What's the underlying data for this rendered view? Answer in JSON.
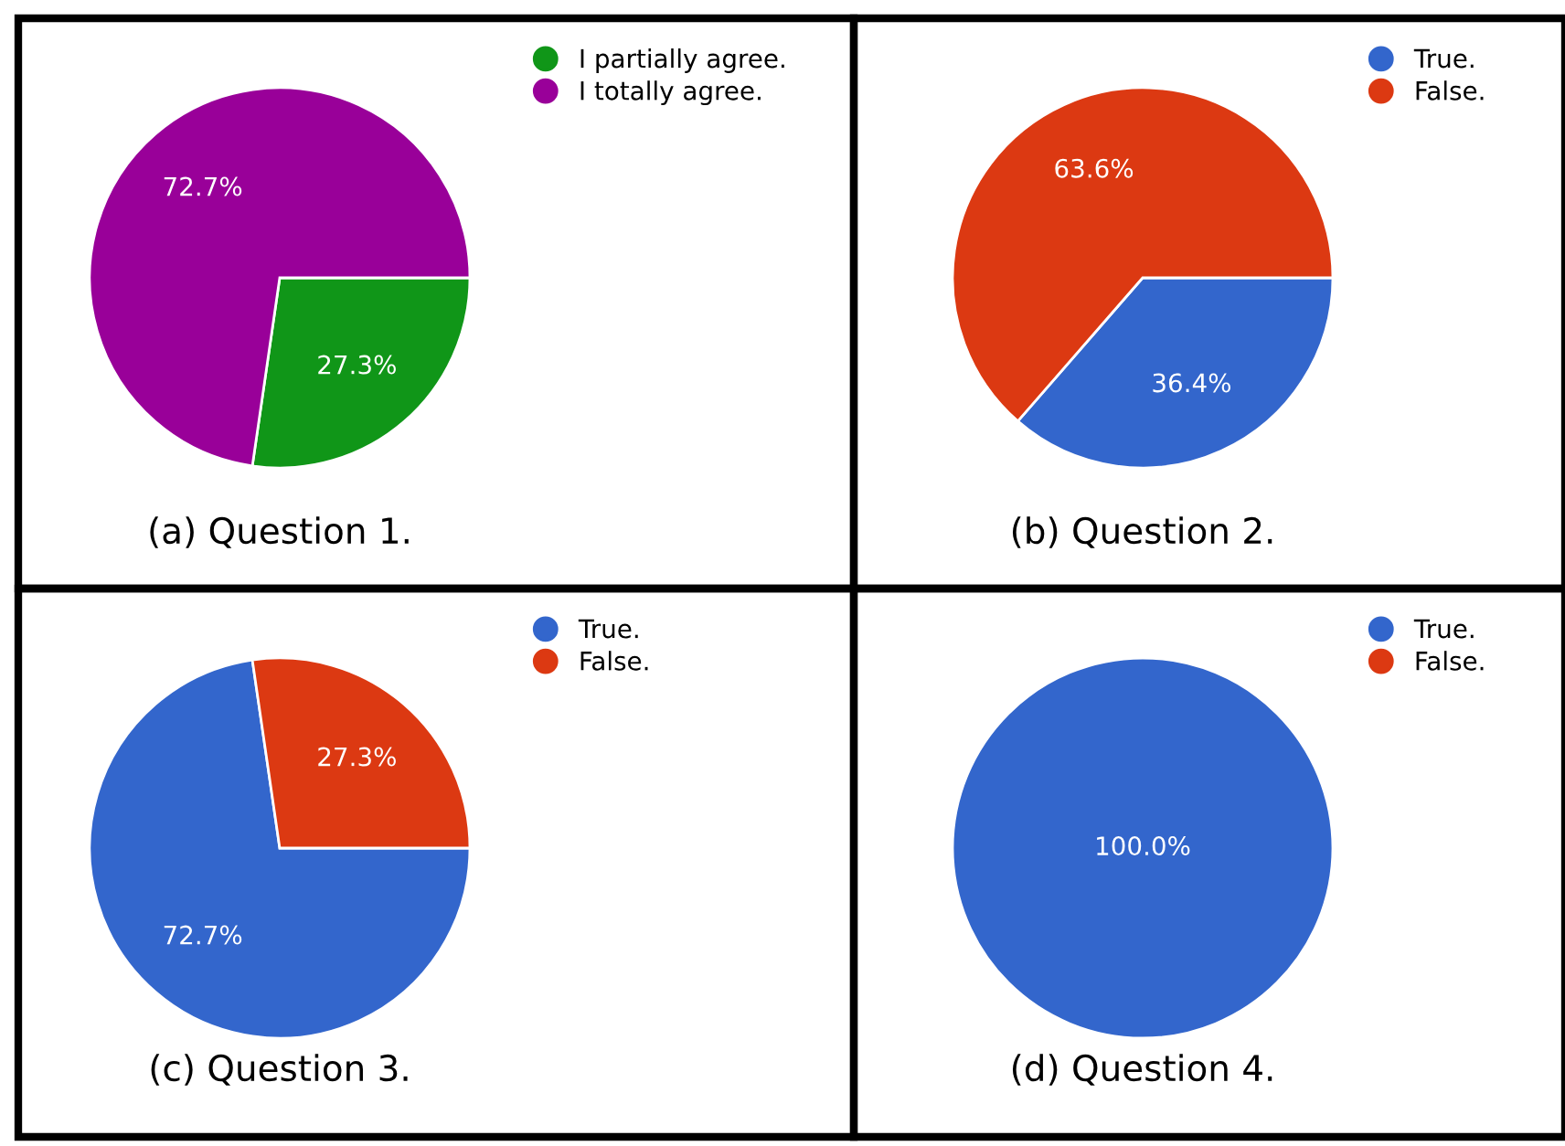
{
  "chart_data": [
    {
      "type": "pie",
      "title": "(a) Question 1.",
      "categories": [
        "I partially agree.",
        "I totally agree."
      ],
      "values": [
        27.3,
        72.7
      ],
      "colors": [
        "#109618",
        "#990099"
      ],
      "value_labels": [
        "27.3%",
        "72.7%"
      ],
      "legend": "top right"
    },
    {
      "type": "pie",
      "title": "(b) Question 2.",
      "categories": [
        "True.",
        "False."
      ],
      "values": [
        36.4,
        63.6
      ],
      "colors": [
        "#3366cc",
        "#dc3912"
      ],
      "value_labels": [
        "36.4%",
        "63.6%"
      ],
      "legend": "top right"
    },
    {
      "type": "pie",
      "title": "(c) Question 3.",
      "categories": [
        "True.",
        "False."
      ],
      "values": [
        72.7,
        27.3
      ],
      "colors": [
        "#3366cc",
        "#dc3912"
      ],
      "value_labels": [
        "72.7%",
        "27.3%"
      ],
      "legend": "top right"
    },
    {
      "type": "pie",
      "title": "(d) Question 4.",
      "categories": [
        "True.",
        "False."
      ],
      "values": [
        100,
        0
      ],
      "colors": [
        "#3366cc",
        "#dc3912"
      ],
      "value_labels": [
        "100.0%",
        null
      ],
      "legend": "top right"
    }
  ]
}
